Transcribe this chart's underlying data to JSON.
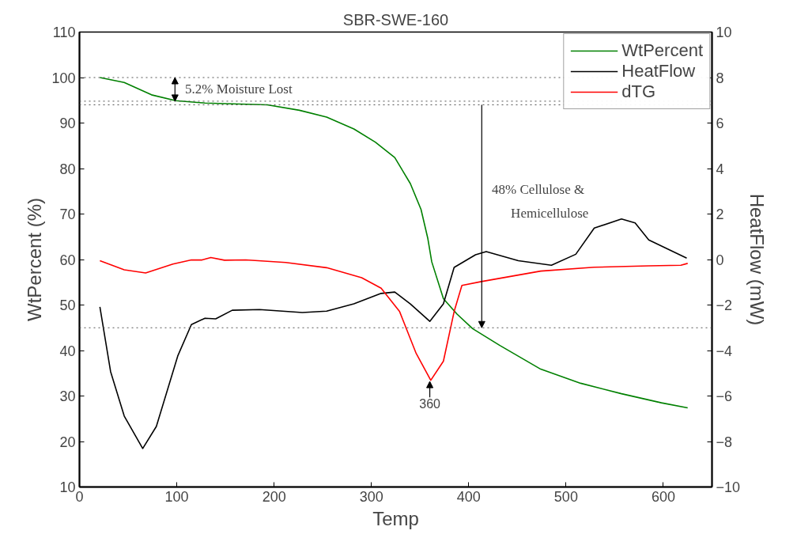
{
  "chart_data": {
    "type": "line",
    "title": "SBR-SWE-160",
    "xlabel": "Temp",
    "ylabel": "WtPercent (%)",
    "y2label": "HeatFlow (mW)",
    "xlim": [
      0,
      650
    ],
    "xticks": [
      0,
      100,
      200,
      300,
      400,
      500,
      600
    ],
    "ylim": [
      10,
      110
    ],
    "yticks": [
      10,
      20,
      30,
      40,
      50,
      60,
      70,
      80,
      90,
      100,
      110
    ],
    "y2lim": [
      -10,
      10
    ],
    "y2ticks": [
      -10,
      -8,
      -6,
      -4,
      -2,
      0,
      2,
      4,
      6,
      8,
      10
    ],
    "grid": false,
    "legend": "top right",
    "line_style": "solid",
    "series": [
      {
        "name": "WtPercent",
        "color": "#008000",
        "x": [
          21,
          46,
          74,
          99,
          129,
          193,
          226,
          254,
          282,
          304,
          324,
          340,
          351,
          358,
          362,
          374,
          388,
          404,
          432,
          474,
          515,
          557,
          598,
          625
        ],
        "values": [
          100,
          98.9,
          96.2,
          94.9,
          94.4,
          94.0,
          92.8,
          91.3,
          88.7,
          85.8,
          82.4,
          76.7,
          71,
          64.6,
          59.5,
          51.4,
          48,
          44.8,
          41.1,
          35.9,
          32.8,
          30.5,
          28.5,
          27.4
        ]
      },
      {
        "name": "HeatFlow",
        "color": "#000000",
        "axis": "y2",
        "x": [
          21,
          32,
          46,
          65,
          79,
          101,
          115,
          129,
          140,
          157,
          185,
          229,
          254,
          282,
          310,
          324,
          340,
          360,
          374,
          385,
          407,
          418,
          451,
          485,
          510,
          529,
          557,
          571,
          585,
          624
        ],
        "values": [
          -2.08,
          -4.93,
          -6.88,
          -8.31,
          -7.34,
          -4.24,
          -2.86,
          -2.58,
          -2.61,
          -2.23,
          -2.2,
          -2.33,
          -2.27,
          -1.95,
          -1.49,
          -1.43,
          -1.95,
          -2.72,
          -1.95,
          -0.35,
          0.21,
          0.35,
          -0.05,
          -0.25,
          0.23,
          1.38,
          1.78,
          1.61,
          0.86,
          0.06
        ]
      },
      {
        "name": "dTG",
        "color": "#ff0000",
        "axis": "y2",
        "x": [
          21,
          46,
          68,
          96,
          115,
          126,
          135,
          149,
          171,
          212,
          254,
          290,
          310,
          329,
          346,
          361,
          374,
          385,
          393,
          413,
          474,
          529,
          585,
          618,
          625
        ],
        "values": [
          -0.05,
          -0.45,
          -0.59,
          -0.2,
          -0.02,
          -0.02,
          0.09,
          -0.03,
          -0.02,
          -0.13,
          -0.36,
          -0.8,
          -1.26,
          -2.29,
          -4.13,
          -5.31,
          -4.47,
          -2.29,
          -1.14,
          -0.97,
          -0.51,
          -0.34,
          -0.28,
          -0.25,
          -0.17
        ]
      }
    ],
    "ref_lines": [
      {
        "axis": "y",
        "value": 100,
        "color": "#555555",
        "line_style": "dotted"
      },
      {
        "axis": "y",
        "value": 94.8,
        "color": "#555555",
        "line_style": "dotted"
      },
      {
        "axis": "y",
        "value": 94,
        "color": "#555555",
        "line_style": "dotted"
      },
      {
        "axis": "y",
        "value": 45,
        "color": "#555555",
        "line_style": "dotted"
      }
    ],
    "annotations": [
      "5.2% Moisture Lost",
      "48% Cellulose & Hemicellulose",
      {
        "text": "360",
        "x": 360,
        "y": 33.2
      }
    ]
  }
}
